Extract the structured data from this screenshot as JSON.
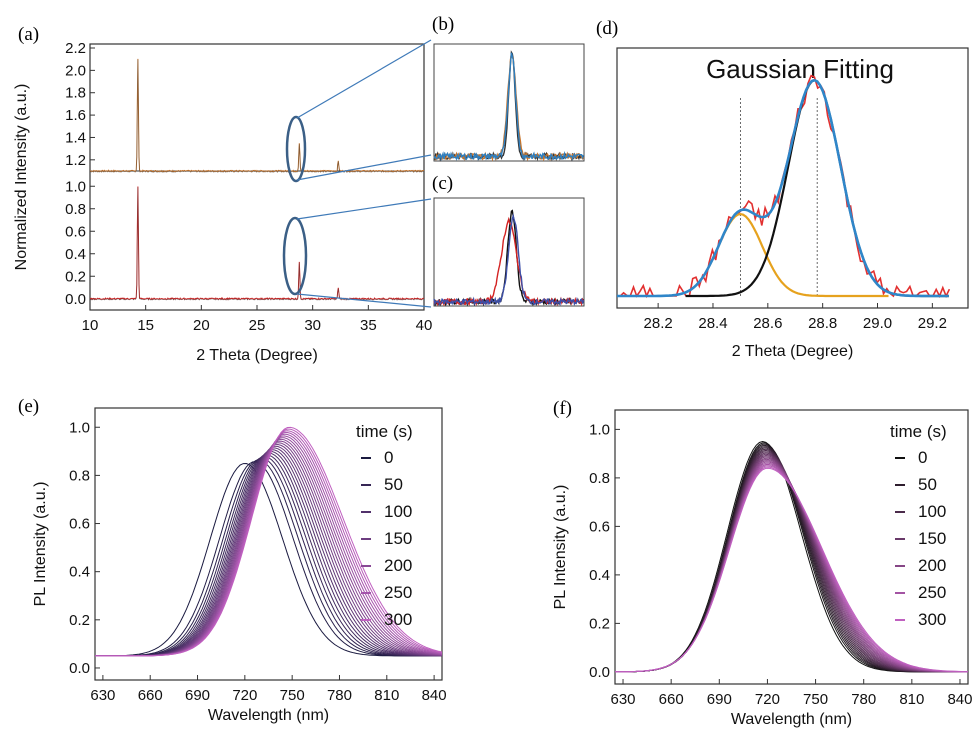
{
  "chart_data": [
    {
      "panel": "(a)",
      "type": "line",
      "xlabel": "2 Theta (Degree)",
      "ylabel": "Normalized Intensity (a.u.)",
      "xlim": [
        10,
        40
      ],
      "x_ticks": [
        "10",
        "15",
        "20",
        "25",
        "30",
        "35",
        "40"
      ],
      "upper": {
        "ylim": [
          1.1,
          2.2
        ],
        "y_ticks": [
          "1.2",
          "1.4",
          "1.6",
          "1.8",
          "2.0",
          "2.2"
        ],
        "baseline": 1.1,
        "peaks": [
          {
            "x": 14.3,
            "y": 2.1
          },
          {
            "x": 28.8,
            "y": 1.35
          },
          {
            "x": 32.3,
            "y": 1.19
          }
        ],
        "color": "#c8742a"
      },
      "lower": {
        "ylim": [
          -0.1,
          1.1
        ],
        "y_ticks": [
          "0.0",
          "0.2",
          "0.4",
          "0.6",
          "0.8",
          "1.0"
        ],
        "baseline": 0.0,
        "peaks": [
          {
            "x": 14.3,
            "y": 1.0
          },
          {
            "x": 28.8,
            "y": 0.33
          },
          {
            "x": 32.3,
            "y": 0.1
          }
        ],
        "color": "#d32222"
      }
    },
    {
      "panel": "(b)",
      "type": "line",
      "series": [
        {
          "color": "#333333",
          "x0": 0.52,
          "w": 0.03,
          "peak": 0.93
        },
        {
          "color": "#c8742a",
          "x0": 0.52,
          "w": 0.04,
          "peak": 0.9
        },
        {
          "color": "#2f7fbf",
          "x0": 0.52,
          "w": 0.035,
          "peak": 0.92
        }
      ]
    },
    {
      "panel": "(c)",
      "type": "line",
      "series": [
        {
          "color": "#111111",
          "x0": 0.52,
          "w": 0.04,
          "peak": 0.88
        },
        {
          "color": "#d32222",
          "x0": 0.5,
          "w": 0.07,
          "peak": 0.78
        },
        {
          "color": "#3d4fa8",
          "x0": 0.53,
          "w": 0.045,
          "peak": 0.83
        }
      ]
    },
    {
      "panel": "(d)",
      "type": "line",
      "title": "Gaussian Fitting",
      "xlabel": "2 Theta (Degree)",
      "xlim": [
        28.05,
        29.33
      ],
      "x_ticks": [
        "28.2",
        "28.4",
        "28.6",
        "28.8",
        "29.0",
        "29.2"
      ],
      "ylim": [
        0,
        1.15
      ],
      "vlines": [
        28.5,
        28.78
      ],
      "gaussians": [
        {
          "name": "peak1",
          "center": 28.5,
          "sigma": 0.08,
          "amp": 0.38,
          "color": "#e6a21e"
        },
        {
          "name": "peak2",
          "center": 28.77,
          "sigma": 0.095,
          "amp": 1.0,
          "color": "#111111"
        }
      ],
      "colors": {
        "data": "#e23030",
        "fit": "#2f86c9"
      }
    },
    {
      "panel": "(e)",
      "type": "line",
      "xlabel": "Wavelength (nm)",
      "ylabel": "PL Intensity (a.u.)",
      "xlim": [
        625,
        845
      ],
      "x_ticks": [
        "630",
        "660",
        "690",
        "720",
        "750",
        "780",
        "810",
        "840"
      ],
      "ylim": [
        -0.05,
        1.08
      ],
      "y_ticks": [
        "0.0",
        "0.2",
        "0.4",
        "0.6",
        "0.8",
        "1.0"
      ],
      "legend_title": "time (s)",
      "legend": [
        "0",
        "50",
        "100",
        "150",
        "200",
        "250",
        "300"
      ],
      "curves": {
        "count": 22,
        "start_peak_nm": 720,
        "end_peak_nm": 748,
        "start_amp": 0.85,
        "end_amp": 1.0,
        "baseline": 0.05
      },
      "colors": {
        "start": "#1a1a40",
        "end": "#c060c0"
      }
    },
    {
      "panel": "(f)",
      "type": "line",
      "xlabel": "Wavelength (nm)",
      "ylabel": "PL Intensity (a.u.)",
      "xlim": [
        625,
        845
      ],
      "x_ticks": [
        "630",
        "660",
        "690",
        "720",
        "750",
        "780",
        "810",
        "840"
      ],
      "ylim": [
        -0.05,
        1.08
      ],
      "y_ticks": [
        "0.0",
        "0.2",
        "0.4",
        "0.6",
        "0.8",
        "1.0"
      ],
      "legend_title": "time (s)",
      "legend": [
        "0",
        "50",
        "100",
        "150",
        "200",
        "250",
        "300"
      ],
      "curves": {
        "count": 22,
        "start_peak_nm": 717,
        "end_peak_nm": 720,
        "start_amp": 0.95,
        "end_amp": 0.84,
        "baseline": 0.0
      },
      "colors": {
        "start": "#111111",
        "end": "#c060c0"
      }
    }
  ],
  "panel_labels": {
    "a": "(a)",
    "b": "(b)",
    "c": "(c)",
    "d": "(d)",
    "e": "(e)",
    "f": "(f)"
  }
}
